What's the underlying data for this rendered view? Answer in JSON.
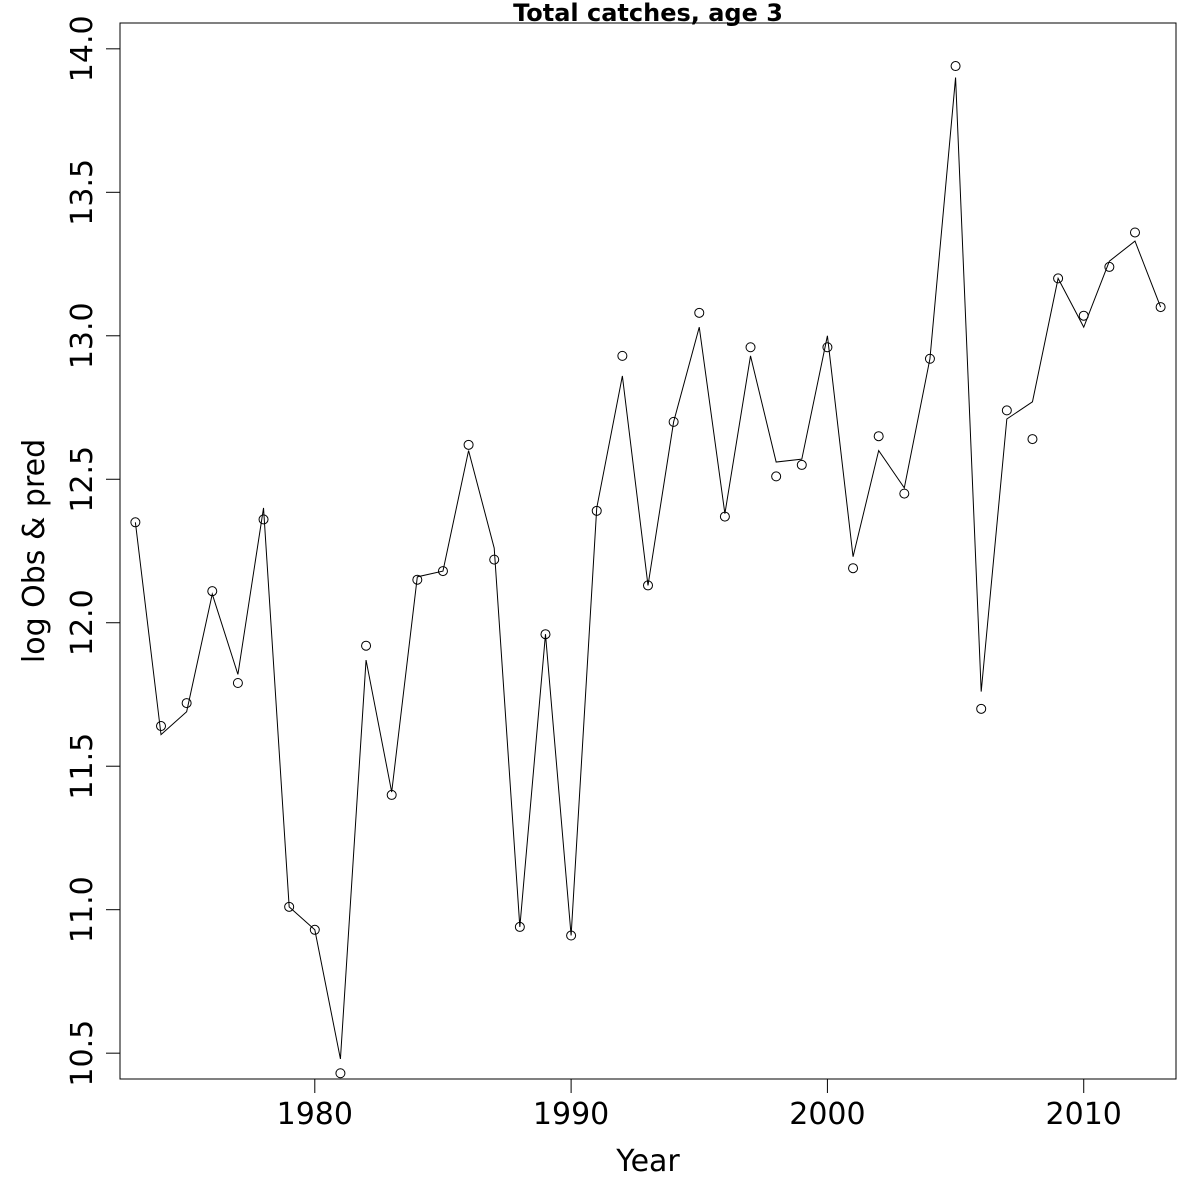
{
  "chart_data": {
    "type": "line",
    "title": "Total catches, age 3",
    "xlabel": "Year",
    "ylabel": "log Obs & pred",
    "xlim": [
      1972.4,
      2013.6
    ],
    "ylim": [
      10.41,
      14.09
    ],
    "x_ticks": [
      1980,
      1990,
      2000,
      2010
    ],
    "y_ticks": [
      10.5,
      11.0,
      11.5,
      12.0,
      12.5,
      13.0,
      13.5,
      14.0
    ],
    "grid": false,
    "legend": "none",
    "x": [
      1973,
      1974,
      1975,
      1976,
      1977,
      1978,
      1979,
      1980,
      1981,
      1982,
      1983,
      1984,
      1985,
      1986,
      1987,
      1988,
      1989,
      1990,
      1991,
      1992,
      1993,
      1994,
      1995,
      1996,
      1997,
      1998,
      1999,
      2000,
      2001,
      2002,
      2003,
      2004,
      2005,
      2006,
      2007,
      2008,
      2009,
      2010,
      2011,
      2012,
      2013
    ],
    "series": [
      {
        "style": "points",
        "values": [
          12.35,
          11.64,
          11.72,
          12.11,
          11.79,
          12.36,
          11.01,
          10.93,
          10.43,
          11.92,
          11.4,
          12.15,
          12.18,
          12.62,
          12.22,
          10.94,
          11.96,
          10.91,
          12.39,
          12.93,
          12.13,
          12.7,
          13.08,
          12.37,
          12.96,
          12.51,
          12.55,
          12.96,
          12.19,
          12.65,
          12.45,
          12.92,
          13.94,
          11.7,
          12.74,
          12.64,
          13.2,
          13.07,
          13.24,
          13.36,
          13.1
        ]
      },
      {
        "style": "line",
        "values": [
          12.35,
          11.61,
          11.69,
          12.1,
          11.82,
          12.4,
          11.01,
          10.93,
          10.48,
          11.87,
          11.41,
          12.16,
          12.18,
          12.6,
          12.26,
          10.94,
          11.96,
          10.91,
          12.4,
          12.86,
          12.13,
          12.7,
          13.03,
          12.38,
          12.93,
          12.56,
          12.57,
          13.0,
          12.23,
          12.6,
          12.47,
          12.92,
          13.9,
          11.76,
          12.71,
          12.77,
          13.2,
          13.03,
          13.26,
          13.33,
          13.1
        ]
      }
    ]
  }
}
